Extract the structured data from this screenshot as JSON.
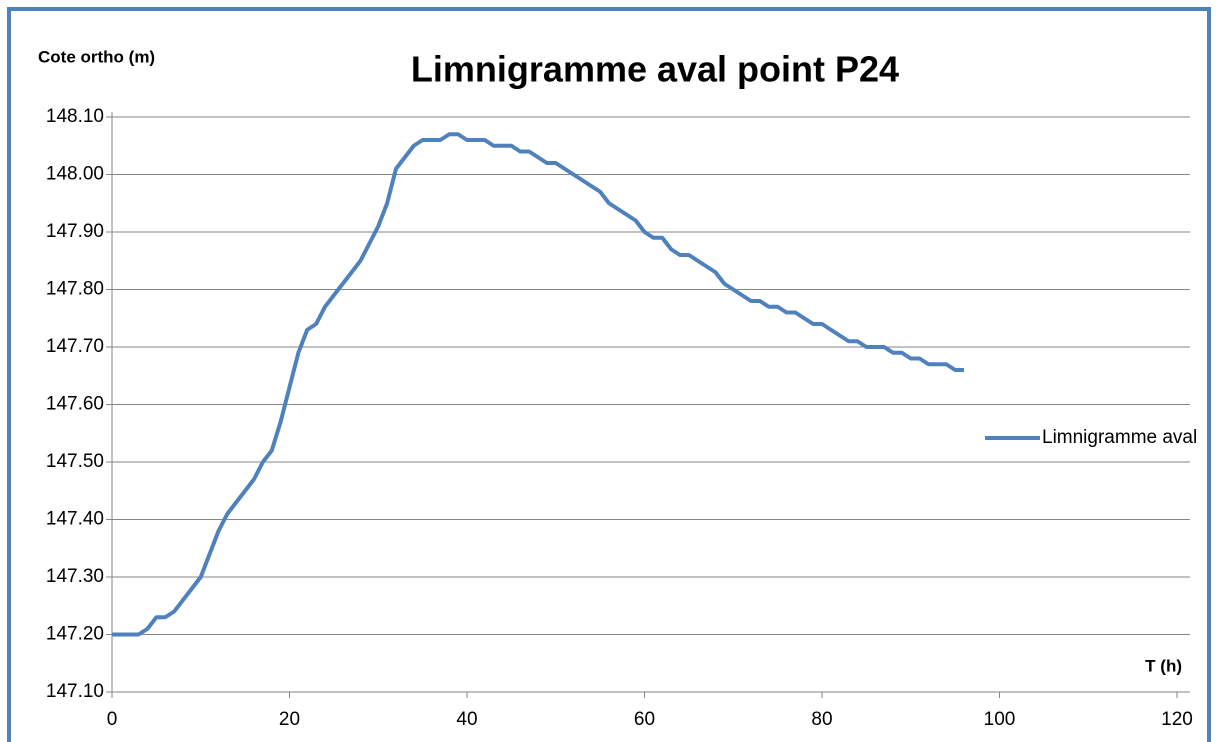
{
  "chart_data": {
    "type": "line",
    "title": "Limnigramme aval point P24",
    "y_label": "Cote ortho (m)",
    "x_label": "T (h)",
    "x": [
      0,
      1,
      2,
      3,
      4,
      5,
      6,
      7,
      8,
      9,
      10,
      11,
      12,
      13,
      14,
      15,
      16,
      17,
      18,
      19,
      20,
      21,
      22,
      23,
      24,
      25,
      26,
      27,
      28,
      29,
      30,
      31,
      32,
      33,
      34,
      35,
      36,
      37,
      38,
      39,
      40,
      41,
      42,
      43,
      44,
      45,
      46,
      47,
      48,
      49,
      50,
      51,
      52,
      53,
      54,
      55,
      56,
      57,
      58,
      59,
      60,
      61,
      62,
      63,
      64,
      65,
      66,
      67,
      68,
      69,
      70,
      71,
      72,
      73,
      74,
      75,
      76,
      77,
      78,
      79,
      80,
      81,
      82,
      83,
      84,
      85,
      86,
      87,
      88,
      89,
      90,
      91,
      92,
      93,
      94,
      95,
      96
    ],
    "series": [
      {
        "name": "Limnigramme aval",
        "color": "#4f81bd",
        "values": [
          147.2,
          147.2,
          147.2,
          147.2,
          147.21,
          147.23,
          147.23,
          147.24,
          147.26,
          147.28,
          147.3,
          147.34,
          147.38,
          147.41,
          147.43,
          147.45,
          147.47,
          147.5,
          147.52,
          147.57,
          147.63,
          147.69,
          147.73,
          147.74,
          147.77,
          147.79,
          147.81,
          147.83,
          147.85,
          147.88,
          147.91,
          147.95,
          148.01,
          148.03,
          148.05,
          148.06,
          148.06,
          148.06,
          148.07,
          148.07,
          148.06,
          148.06,
          148.06,
          148.05,
          148.05,
          148.05,
          148.04,
          148.04,
          148.03,
          148.02,
          148.02,
          148.01,
          148.0,
          147.99,
          147.98,
          147.97,
          147.95,
          147.94,
          147.93,
          147.92,
          147.9,
          147.89,
          147.89,
          147.87,
          147.86,
          147.86,
          147.85,
          147.84,
          147.83,
          147.81,
          147.8,
          147.79,
          147.78,
          147.78,
          147.77,
          147.77,
          147.76,
          147.76,
          147.75,
          147.74,
          147.74,
          147.73,
          147.72,
          147.71,
          147.71,
          147.7,
          147.7,
          147.7,
          147.69,
          147.69,
          147.68,
          147.68,
          147.67,
          147.67,
          147.67,
          147.66,
          147.66
        ]
      }
    ],
    "xlim": [
      0,
      120
    ],
    "xticks": [
      0,
      20,
      40,
      60,
      80,
      100,
      120
    ],
    "ylim": [
      147.1,
      148.1
    ],
    "yticks": [
      {
        "value": 147.1,
        "label": "147.10"
      },
      {
        "value": 147.2,
        "label": "147.20"
      },
      {
        "value": 147.3,
        "label": "147.30"
      },
      {
        "value": 147.4,
        "label": "147.40"
      },
      {
        "value": 147.5,
        "label": "147.50"
      },
      {
        "value": 147.6,
        "label": "147.60"
      },
      {
        "value": 147.7,
        "label": "147.70"
      },
      {
        "value": 147.8,
        "label": "147.80"
      },
      {
        "value": 147.9,
        "label": "147.90"
      },
      {
        "value": 148.0,
        "label": "148.00"
      },
      {
        "value": 148.1,
        "label": "148.10"
      }
    ],
    "grid": true,
    "legend": "right"
  }
}
